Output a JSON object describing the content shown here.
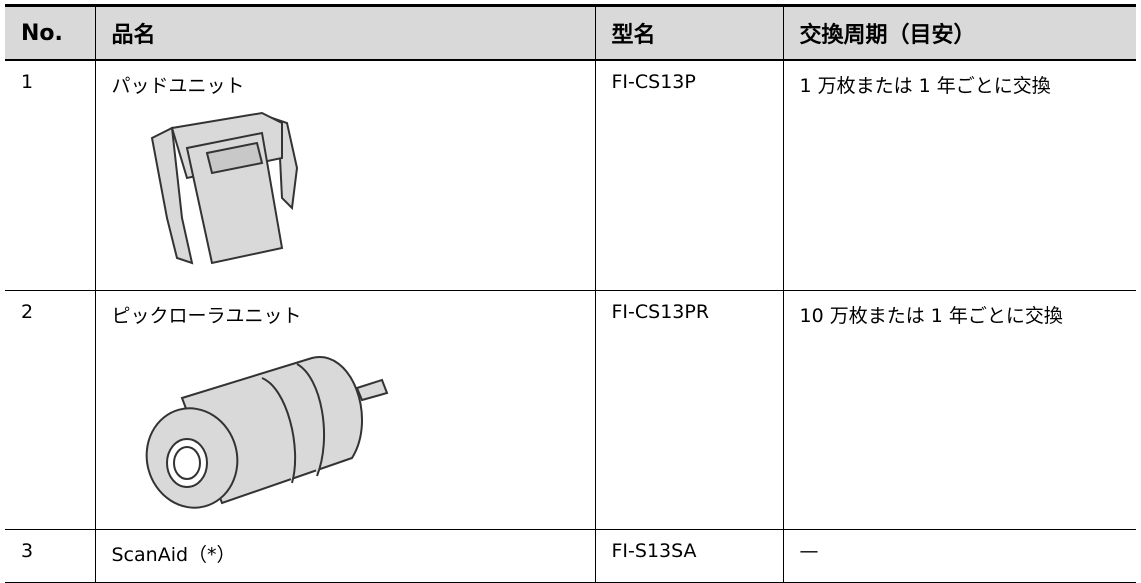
{
  "table": {
    "header": [
      "No.",
      "品名",
      "型名",
      "交換周期（目安）"
    ],
    "rows": [
      [
        "1",
        "パッドユニット",
        "FI-CS13P",
        "1 万枚または 1 年ごとに交換"
      ],
      [
        "2",
        "ピックローラユニット",
        "FI-CS13PR",
        "10 万枚または 1 年ごとに交換"
      ],
      [
        "3",
        "ScanAid（*）",
        "FI-S13SA",
        "—"
      ]
    ]
  }
}
